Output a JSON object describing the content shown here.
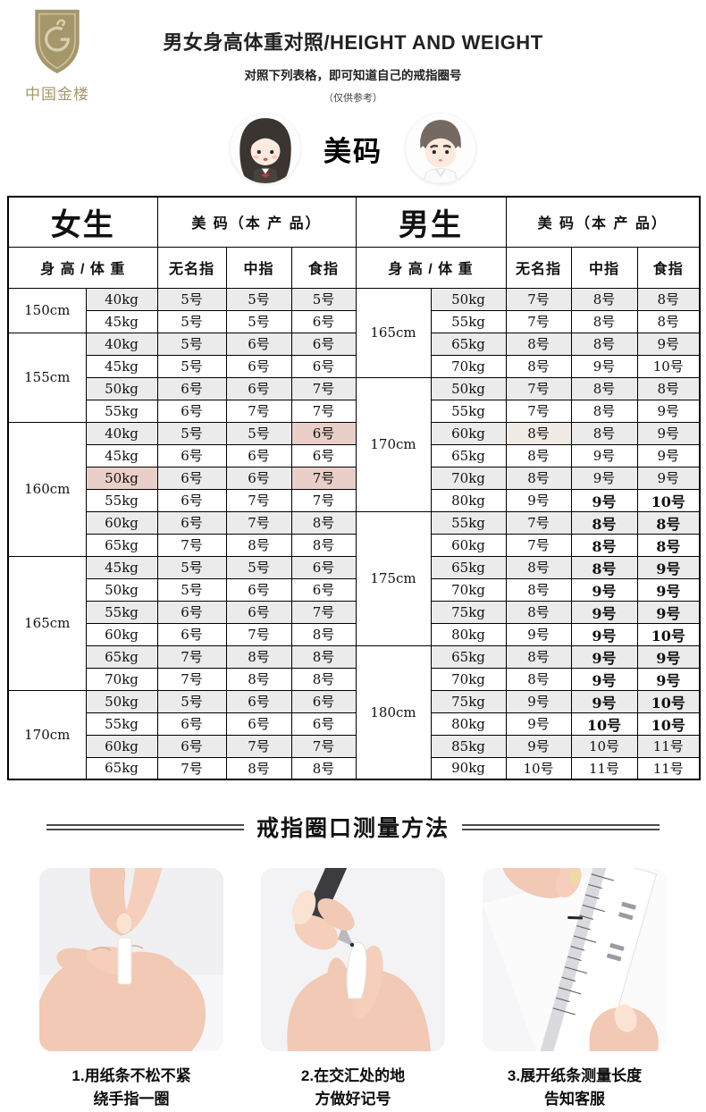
{
  "brand": {
    "name": "中国金楼"
  },
  "header": {
    "title": "男女身高体重对照/HEIGHT AND WEIGHT",
    "subtitle": "对照下列表格，即可知道自己的戒指圈号",
    "note": "（仅供参考）",
    "badge": "美码"
  },
  "colors": {
    "accent_gold": "#a5976b",
    "row_shade": "#ebebeb",
    "pink_highlight": "#e9cfc8",
    "warm_highlight": "#f0ebe5"
  },
  "table": {
    "women": {
      "group_label": "女生",
      "product_label": "美 码（本 产 品）",
      "hw_label": "身 高 / 体 重",
      "fingers": [
        "无名指",
        "中指",
        "食指"
      ],
      "rows": [
        {
          "h": "150cm",
          "span": 2,
          "w": "40kg",
          "s": [
            "5号",
            "5号",
            "5号"
          ]
        },
        {
          "w": "45kg",
          "s": [
            "5号",
            "5号",
            "6号"
          ]
        },
        {
          "h": "155cm",
          "span": 4,
          "w": "40kg",
          "s": [
            "5号",
            "6号",
            "6号"
          ]
        },
        {
          "w": "45kg",
          "s": [
            "5号",
            "6号",
            "6号"
          ]
        },
        {
          "w": "50kg",
          "s": [
            "6号",
            "6号",
            "7号"
          ]
        },
        {
          "w": "55kg",
          "s": [
            "6号",
            "7号",
            "7号"
          ]
        },
        {
          "h": "160cm",
          "span": 6,
          "w": "40kg",
          "s": [
            "5号",
            "5号",
            "6号"
          ],
          "hl": [
            "",
            "",
            "pink"
          ]
        },
        {
          "w": "45kg",
          "s": [
            "6号",
            "6号",
            "6号"
          ]
        },
        {
          "w": "50kg",
          "s": [
            "6号",
            "6号",
            "7号"
          ],
          "hw": "pink",
          "hl": [
            "",
            "",
            "pink"
          ]
        },
        {
          "w": "55kg",
          "s": [
            "6号",
            "7号",
            "7号"
          ]
        },
        {
          "w": "60kg",
          "s": [
            "6号",
            "7号",
            "8号"
          ]
        },
        {
          "w": "65kg",
          "s": [
            "7号",
            "8号",
            "8号"
          ]
        },
        {
          "h": "165cm",
          "span": 6,
          "w": "45kg",
          "s": [
            "5号",
            "5号",
            "6号"
          ]
        },
        {
          "w": "50kg",
          "s": [
            "5号",
            "6号",
            "6号"
          ]
        },
        {
          "w": "55kg",
          "s": [
            "6号",
            "6号",
            "7号"
          ]
        },
        {
          "w": "60kg",
          "s": [
            "6号",
            "7号",
            "8号"
          ]
        },
        {
          "w": "65kg",
          "s": [
            "7号",
            "8号",
            "8号"
          ]
        },
        {
          "w": "70kg",
          "s": [
            "7号",
            "8号",
            "8号"
          ]
        },
        {
          "h": "170cm",
          "span": 4,
          "w": "50kg",
          "s": [
            "5号",
            "6号",
            "6号"
          ]
        },
        {
          "w": "55kg",
          "s": [
            "6号",
            "6号",
            "6号"
          ]
        },
        {
          "w": "60kg",
          "s": [
            "6号",
            "7号",
            "7号"
          ]
        },
        {
          "w": "65kg",
          "s": [
            "7号",
            "8号",
            "8号"
          ]
        }
      ]
    },
    "men": {
      "group_label": "男生",
      "product_label": "美 码（本 产 品）",
      "hw_label": "身 高 / 体 重",
      "fingers": [
        "无名指",
        "中指",
        "食指"
      ],
      "rows": [
        {
          "h": "165cm",
          "span": 4,
          "w": "50kg",
          "s": [
            "7号",
            "8号",
            "8号"
          ]
        },
        {
          "w": "55kg",
          "s": [
            "7号",
            "8号",
            "8号"
          ]
        },
        {
          "w": "65kg",
          "s": [
            "8号",
            "8号",
            "9号"
          ]
        },
        {
          "w": "70kg",
          "s": [
            "8号",
            "9号",
            "10号"
          ]
        },
        {
          "h": "170cm",
          "span": 6,
          "w": "50kg",
          "s": [
            "7号",
            "8号",
            "8号"
          ]
        },
        {
          "w": "55kg",
          "s": [
            "7号",
            "8号",
            "9号"
          ]
        },
        {
          "w": "60kg",
          "s": [
            "8号",
            "8号",
            "9号"
          ],
          "hl": [
            "warm",
            "",
            ""
          ]
        },
        {
          "w": "65kg",
          "s": [
            "8号",
            "9号",
            "9号"
          ]
        },
        {
          "w": "70kg",
          "s": [
            "8号",
            "9号",
            "9号"
          ]
        },
        {
          "w": "80kg",
          "s": [
            "9号",
            "9号",
            "10号"
          ],
          "b": [
            0,
            1,
            1
          ]
        },
        {
          "h": "175cm",
          "span": 6,
          "w": "55kg",
          "s": [
            "7号",
            "8号",
            "8号"
          ],
          "b": [
            0,
            1,
            1
          ]
        },
        {
          "w": "60kg",
          "s": [
            "7号",
            "8号",
            "8号"
          ],
          "b": [
            0,
            1,
            1
          ]
        },
        {
          "w": "65kg",
          "s": [
            "8号",
            "8号",
            "9号"
          ],
          "b": [
            0,
            1,
            1
          ]
        },
        {
          "w": "70kg",
          "s": [
            "8号",
            "9号",
            "9号"
          ],
          "b": [
            0,
            1,
            1
          ]
        },
        {
          "w": "75kg",
          "s": [
            "8号",
            "9号",
            "9号"
          ],
          "b": [
            0,
            1,
            1
          ]
        },
        {
          "w": "80kg",
          "s": [
            "9号",
            "9号",
            "10号"
          ],
          "b": [
            0,
            1,
            1
          ]
        },
        {
          "h": "180cm",
          "span": 6,
          "w": "65kg",
          "s": [
            "8号",
            "9号",
            "9号"
          ],
          "b": [
            0,
            1,
            1
          ]
        },
        {
          "w": "70kg",
          "s": [
            "8号",
            "9号",
            "9号"
          ],
          "b": [
            0,
            1,
            1
          ]
        },
        {
          "w": "75kg",
          "s": [
            "9号",
            "9号",
            "10号"
          ],
          "b": [
            0,
            1,
            1
          ]
        },
        {
          "w": "80kg",
          "s": [
            "9号",
            "10号",
            "10号"
          ],
          "b": [
            0,
            1,
            1
          ]
        },
        {
          "w": "85kg",
          "s": [
            "9号",
            "10号",
            "11号"
          ]
        },
        {
          "w": "90kg",
          "s": [
            "10号",
            "11号",
            "11号"
          ]
        }
      ]
    }
  },
  "measure": {
    "title": "戒指圈口测量方法",
    "steps": [
      {
        "line1": "1.用纸条不松不紧",
        "line2": "绕手指一圈"
      },
      {
        "line1": "2.在交汇处的地",
        "line2": "方做好记号"
      },
      {
        "line1": "3.展开纸条测量长度",
        "line2": "告知客服"
      }
    ]
  }
}
